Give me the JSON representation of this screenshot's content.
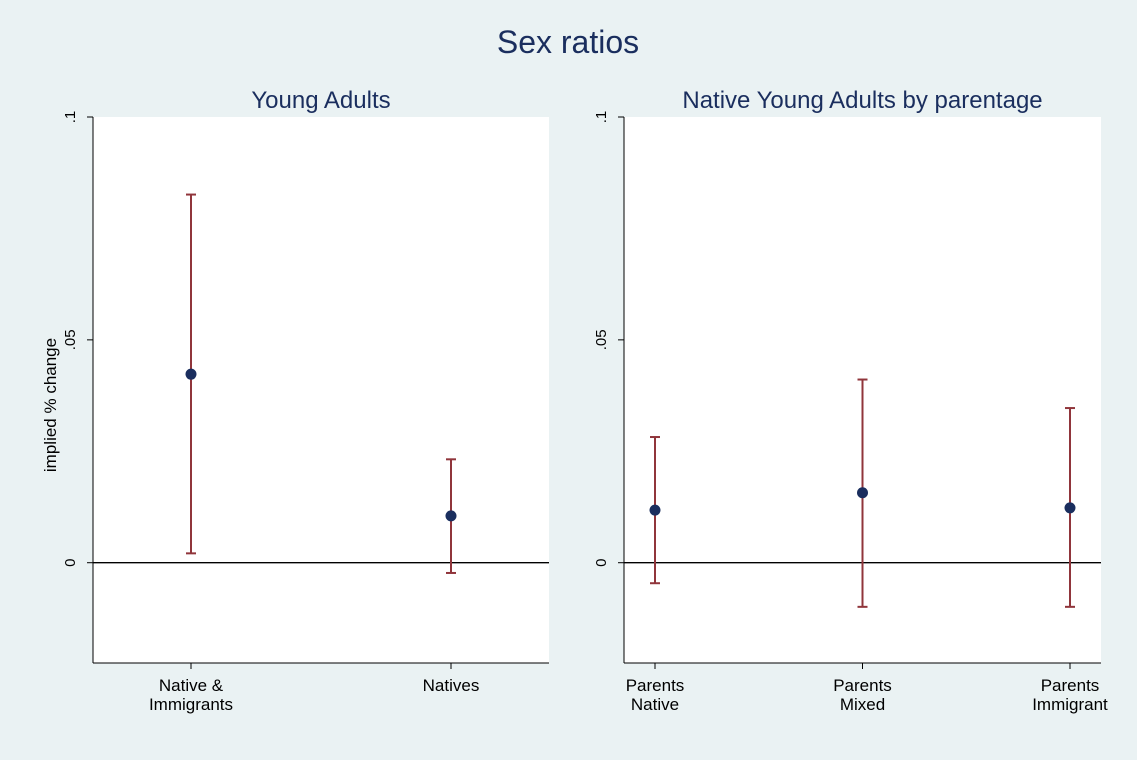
{
  "figure": {
    "title": "Sex ratios",
    "ylabel": "implied % change"
  },
  "colors": {
    "background": "#eaf2f3",
    "plot_area": "#ffffff",
    "title": "#1a2e5e",
    "ci_line": "#90353b",
    "point": "#1a2e5e",
    "zero_line": "#000000"
  },
  "chart_data": [
    {
      "type": "scatter",
      "title": "Young Adults",
      "ylabel": "implied % change",
      "xlabel": "",
      "ylim": [
        -0.0225,
        0.1
      ],
      "yticks": [
        0,
        0.05,
        0.1
      ],
      "ytick_labels": [
        "0",
        ".05",
        ".1"
      ],
      "reference_line": 0,
      "grid": false,
      "categories": [
        [
          "Native &",
          "Immigrants"
        ],
        [
          "Natives"
        ]
      ],
      "series": [
        {
          "estimate": [
            0.0423,
            0.0105
          ],
          "ci_low": [
            0.0021,
            -0.0023
          ],
          "ci_high": [
            0.0826,
            0.0232
          ]
        }
      ]
    },
    {
      "type": "scatter",
      "title": "Native Young Adults by parentage",
      "ylabel": "",
      "xlabel": "",
      "ylim": [
        -0.0225,
        0.1
      ],
      "yticks": [
        0,
        0.05,
        0.1
      ],
      "ytick_labels": [
        "0",
        ".05",
        ".1"
      ],
      "reference_line": 0,
      "grid": false,
      "categories": [
        [
          "Parents",
          "Native"
        ],
        [
          "Parents",
          "Mixed"
        ],
        [
          "Parents",
          "Immigrant"
        ]
      ],
      "series": [
        {
          "estimate": [
            0.0118,
            0.0157,
            0.0123
          ],
          "ci_low": [
            -0.0046,
            -0.0099,
            -0.0099
          ],
          "ci_high": [
            0.0282,
            0.0411,
            0.0347
          ]
        }
      ]
    }
  ]
}
